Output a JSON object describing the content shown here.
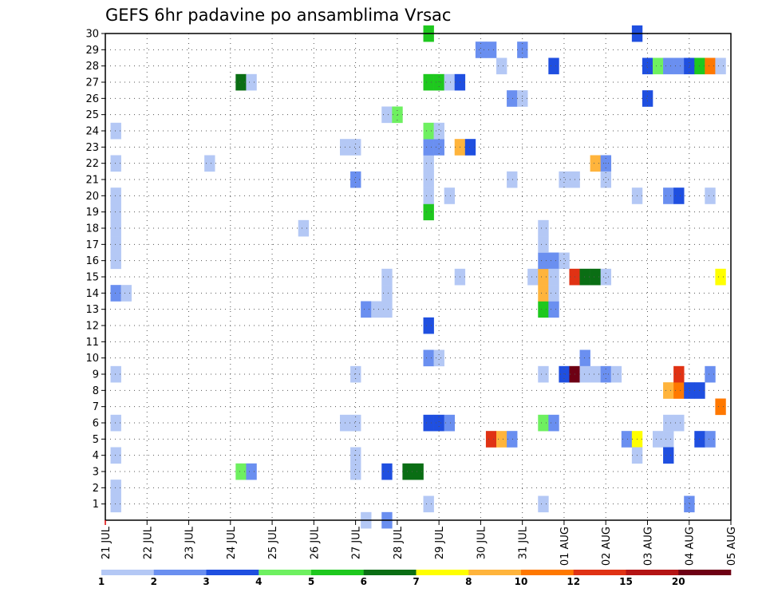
{
  "chart_data": {
    "type": "heatmap",
    "title": "GEFS 6hr padavine po ansamblima Vrsac",
    "xlabel": "",
    "ylabel": "",
    "x_tick_labels": [
      "21 JUL",
      "22 JUL",
      "23 JUL",
      "24 JUL",
      "25 JUL",
      "26 JUL",
      "27 JUL",
      "28 JUL",
      "29 JUL",
      "30 JUL",
      "31 JUL",
      "01 AUG",
      "02 AUG",
      "03 AUG",
      "04 AUG",
      "05 AUG"
    ],
    "y_tick_labels": [
      "1",
      "2",
      "3",
      "4",
      "5",
      "6",
      "7",
      "8",
      "9",
      "10",
      "11",
      "12",
      "13",
      "14",
      "15",
      "16",
      "17",
      "18",
      "19",
      "20",
      "21",
      "22",
      "23",
      "24",
      "25",
      "26",
      "27",
      "28",
      "29",
      "30"
    ],
    "x_unit": "6-hour steps from 21 JUL 00Z",
    "xlim": [
      0,
      60
    ],
    "ylim": [
      0,
      30
    ],
    "grid": true,
    "legend": {
      "placement": "bottom",
      "labels": [
        "1",
        "2",
        "3",
        "4",
        "5",
        "6",
        "7",
        "8",
        "10",
        "12",
        "15",
        "20"
      ],
      "colors": [
        "#b4c8f5",
        "#6a8ff0",
        "#1f4fe0",
        "#6ef060",
        "#1ec81e",
        "#0a6e14",
        "#ffff00",
        "#ffb43c",
        "#ff7800",
        "#e03214",
        "#b41414",
        "#6e0014"
      ]
    },
    "cells": [
      {
        "t": 1,
        "m": 1,
        "c": 0
      },
      {
        "t": 1,
        "m": 2,
        "c": 0
      },
      {
        "t": 1,
        "m": 4,
        "c": 0
      },
      {
        "t": 1,
        "m": 6,
        "c": 0
      },
      {
        "t": 1,
        "m": 9,
        "c": 0
      },
      {
        "t": 1,
        "m": 14,
        "c": 1
      },
      {
        "t": 2,
        "m": 14,
        "c": 0
      },
      {
        "t": 1,
        "m": 16,
        "c": 0
      },
      {
        "t": 1,
        "m": 17,
        "c": 0
      },
      {
        "t": 1,
        "m": 18,
        "c": 0
      },
      {
        "t": 1,
        "m": 19,
        "c": 0
      },
      {
        "t": 1,
        "m": 20,
        "c": 0
      },
      {
        "t": 1,
        "m": 22,
        "c": 0
      },
      {
        "t": 1,
        "m": 24,
        "c": 0
      },
      {
        "t": 10,
        "m": 22,
        "c": 0
      },
      {
        "t": 13,
        "m": 3,
        "c": 3
      },
      {
        "t": 14,
        "m": 3,
        "c": 1
      },
      {
        "t": 13,
        "m": 27,
        "c": 5
      },
      {
        "t": 14,
        "m": 27,
        "c": 0
      },
      {
        "t": 19,
        "m": 18,
        "c": 0
      },
      {
        "t": 23,
        "m": 23,
        "c": 0
      },
      {
        "t": 24,
        "m": 23,
        "c": 0
      },
      {
        "t": 23,
        "m": 6,
        "c": 0
      },
      {
        "t": 24,
        "m": 6,
        "c": 0
      },
      {
        "t": 24,
        "m": 3,
        "c": 0
      },
      {
        "t": 24,
        "m": 4,
        "c": 0
      },
      {
        "t": 24,
        "m": 9,
        "c": 0
      },
      {
        "t": 24,
        "m": 21,
        "c": 1
      },
      {
        "t": 25,
        "m": 0,
        "c": 0
      },
      {
        "t": 25,
        "m": 13,
        "c": 1
      },
      {
        "t": 26,
        "m": 13,
        "c": 0
      },
      {
        "t": 27,
        "m": 13,
        "c": 0
      },
      {
        "t": 27,
        "m": 14,
        "c": 0
      },
      {
        "t": 27,
        "m": 15,
        "c": 0
      },
      {
        "t": 27,
        "m": 0,
        "c": 1
      },
      {
        "t": 27,
        "m": 3,
        "c": 2
      },
      {
        "t": 27,
        "m": 25,
        "c": 0
      },
      {
        "t": 28,
        "m": 25,
        "c": 3
      },
      {
        "t": 29,
        "m": 3,
        "c": 5
      },
      {
        "t": 30,
        "m": 3,
        "c": 5
      },
      {
        "t": 31,
        "m": 1,
        "c": 0
      },
      {
        "t": 31,
        "m": 6,
        "c": 2
      },
      {
        "t": 32,
        "m": 6,
        "c": 2
      },
      {
        "t": 33,
        "m": 6,
        "c": 1
      },
      {
        "t": 31,
        "m": 10,
        "c": 1
      },
      {
        "t": 32,
        "m": 10,
        "c": 0
      },
      {
        "t": 31,
        "m": 12,
        "c": 2
      },
      {
        "t": 31,
        "m": 19,
        "c": 4
      },
      {
        "t": 31,
        "m": 20,
        "c": 0
      },
      {
        "t": 31,
        "m": 21,
        "c": 0
      },
      {
        "t": 31,
        "m": 22,
        "c": 0
      },
      {
        "t": 31,
        "m": 23,
        "c": 1
      },
      {
        "t": 32,
        "m": 23,
        "c": 1
      },
      {
        "t": 31,
        "m": 24,
        "c": 3
      },
      {
        "t": 32,
        "m": 24,
        "c": 0
      },
      {
        "t": 31,
        "m": 27,
        "c": 4
      },
      {
        "t": 32,
        "m": 27,
        "c": 4
      },
      {
        "t": 33,
        "m": 27,
        "c": 0
      },
      {
        "t": 34,
        "m": 27,
        "c": 2
      },
      {
        "t": 31,
        "m": 30,
        "c": 4
      },
      {
        "t": 33,
        "m": 20,
        "c": 0
      },
      {
        "t": 34,
        "m": 15,
        "c": 0
      },
      {
        "t": 34,
        "m": 23,
        "c": 7
      },
      {
        "t": 35,
        "m": 23,
        "c": 2
      },
      {
        "t": 36,
        "m": 29,
        "c": 1
      },
      {
        "t": 37,
        "m": 29,
        "c": 1
      },
      {
        "t": 37,
        "m": 5,
        "c": 9
      },
      {
        "t": 38,
        "m": 5,
        "c": 7
      },
      {
        "t": 39,
        "m": 5,
        "c": 1
      },
      {
        "t": 38,
        "m": 28,
        "c": 0
      },
      {
        "t": 39,
        "m": 21,
        "c": 0
      },
      {
        "t": 39,
        "m": 26,
        "c": 1
      },
      {
        "t": 40,
        "m": 26,
        "c": 0
      },
      {
        "t": 40,
        "m": 29,
        "c": 1
      },
      {
        "t": 41,
        "m": 15,
        "c": 0
      },
      {
        "t": 42,
        "m": 1,
        "c": 0
      },
      {
        "t": 42,
        "m": 9,
        "c": 0
      },
      {
        "t": 42,
        "m": 13,
        "c": 4
      },
      {
        "t": 42,
        "m": 14,
        "c": 7
      },
      {
        "t": 42,
        "m": 15,
        "c": 7
      },
      {
        "t": 42,
        "m": 16,
        "c": 1
      },
      {
        "t": 43,
        "m": 16,
        "c": 1
      },
      {
        "t": 44,
        "m": 16,
        "c": 0
      },
      {
        "t": 42,
        "m": 17,
        "c": 0
      },
      {
        "t": 42,
        "m": 18,
        "c": 0
      },
      {
        "t": 42,
        "m": 6,
        "c": 3
      },
      {
        "t": 43,
        "m": 6,
        "c": 1
      },
      {
        "t": 43,
        "m": 13,
        "c": 1
      },
      {
        "t": 43,
        "m": 14,
        "c": 0
      },
      {
        "t": 43,
        "m": 15,
        "c": 0
      },
      {
        "t": 43,
        "m": 28,
        "c": 2
      },
      {
        "t": 44,
        "m": 21,
        "c": 0
      },
      {
        "t": 45,
        "m": 21,
        "c": 0
      },
      {
        "t": 44,
        "m": 9,
        "c": 2
      },
      {
        "t": 45,
        "m": 9,
        "c": 11
      },
      {
        "t": 45,
        "m": 15,
        "c": 9
      },
      {
        "t": 46,
        "m": 15,
        "c": 5
      },
      {
        "t": 47,
        "m": 15,
        "c": 5
      },
      {
        "t": 46,
        "m": 10,
        "c": 1
      },
      {
        "t": 46,
        "m": 9,
        "c": 0
      },
      {
        "t": 47,
        "m": 9,
        "c": 0
      },
      {
        "t": 47,
        "m": 22,
        "c": 7
      },
      {
        "t": 48,
        "m": 22,
        "c": 1
      },
      {
        "t": 48,
        "m": 15,
        "c": 0
      },
      {
        "t": 48,
        "m": 21,
        "c": 0
      },
      {
        "t": 48,
        "m": 9,
        "c": 1
      },
      {
        "t": 49,
        "m": 9,
        "c": 0
      },
      {
        "t": 50,
        "m": 5,
        "c": 1
      },
      {
        "t": 51,
        "m": 5,
        "c": 6
      },
      {
        "t": 51,
        "m": 4,
        "c": 0
      },
      {
        "t": 51,
        "m": 20,
        "c": 0
      },
      {
        "t": 51,
        "m": 30,
        "c": 2
      },
      {
        "t": 52,
        "m": 28,
        "c": 2
      },
      {
        "t": 53,
        "m": 28,
        "c": 3
      },
      {
        "t": 54,
        "m": 28,
        "c": 1
      },
      {
        "t": 55,
        "m": 28,
        "c": 1
      },
      {
        "t": 56,
        "m": 28,
        "c": 2
      },
      {
        "t": 57,
        "m": 28,
        "c": 4
      },
      {
        "t": 58,
        "m": 28,
        "c": 8
      },
      {
        "t": 59,
        "m": 28,
        "c": 0
      },
      {
        "t": 52,
        "m": 26,
        "c": 2
      },
      {
        "t": 53,
        "m": 5,
        "c": 0
      },
      {
        "t": 54,
        "m": 5,
        "c": 0
      },
      {
        "t": 54,
        "m": 6,
        "c": 0
      },
      {
        "t": 54,
        "m": 4,
        "c": 2
      },
      {
        "t": 54,
        "m": 8,
        "c": 7
      },
      {
        "t": 55,
        "m": 8,
        "c": 8
      },
      {
        "t": 56,
        "m": 8,
        "c": 2
      },
      {
        "t": 57,
        "m": 8,
        "c": 2
      },
      {
        "t": 54,
        "m": 20,
        "c": 1
      },
      {
        "t": 55,
        "m": 20,
        "c": 2
      },
      {
        "t": 55,
        "m": 9,
        "c": 9
      },
      {
        "t": 55,
        "m": 6,
        "c": 0
      },
      {
        "t": 56,
        "m": 1,
        "c": 1
      },
      {
        "t": 57,
        "m": 5,
        "c": 2
      },
      {
        "t": 58,
        "m": 5,
        "c": 1
      },
      {
        "t": 58,
        "m": 20,
        "c": 0
      },
      {
        "t": 58,
        "m": 9,
        "c": 1
      },
      {
        "t": 59,
        "m": 7,
        "c": 8
      },
      {
        "t": 59,
        "m": 15,
        "c": 6
      }
    ]
  }
}
